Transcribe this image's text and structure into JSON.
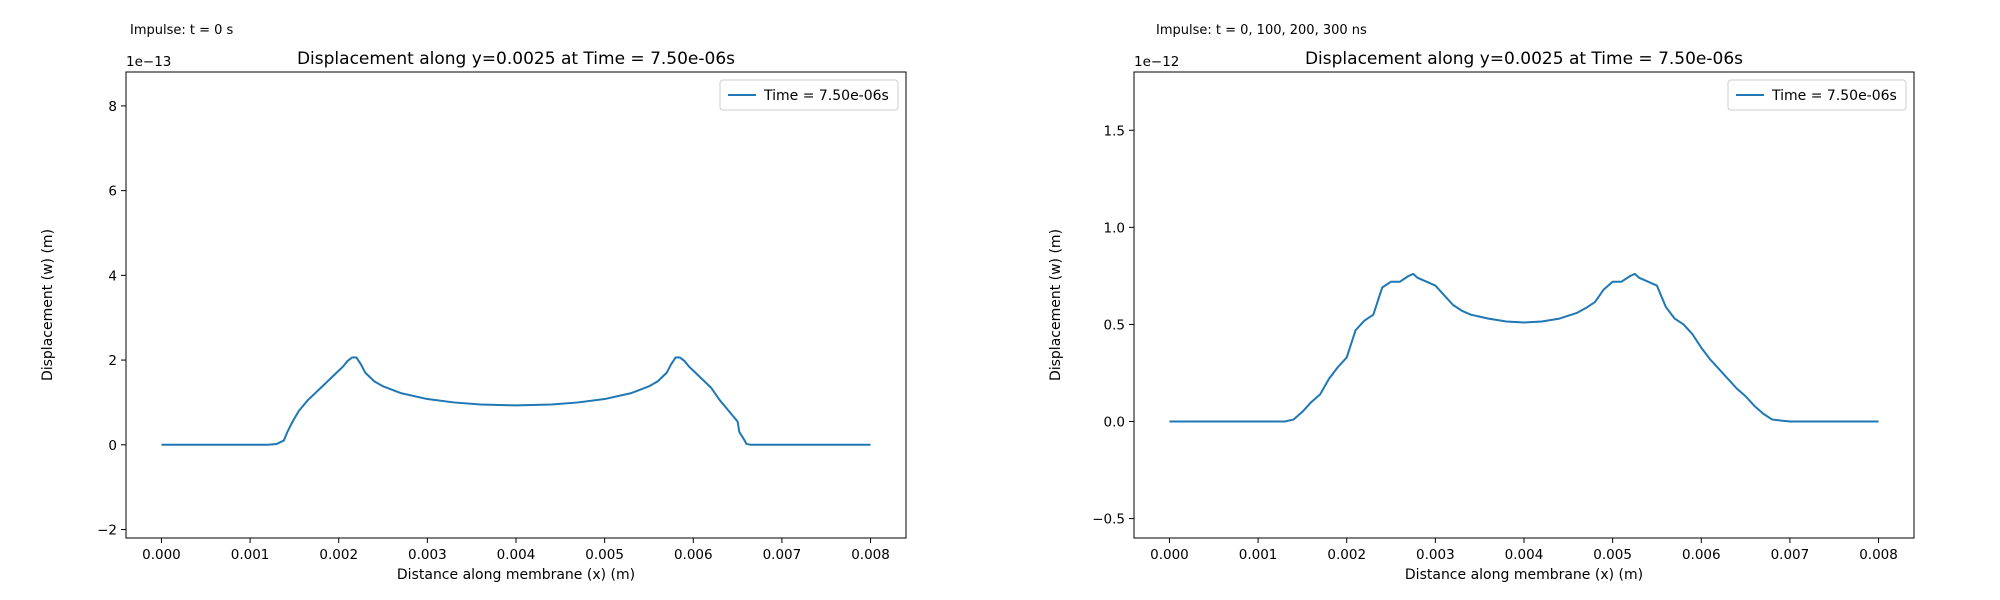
{
  "chart_data": [
    {
      "type": "line",
      "suptitle": "Impulse: t = 0 s",
      "title": "Displacement along y=0.0025 at Time = 7.50e-06s",
      "xlabel": "Distance along membrane (x) (m)",
      "ylabel": "Displacement (w) (m)",
      "y_offset_label": "1e−13",
      "xlim": [
        -0.0004,
        0.0084
      ],
      "ylim": [
        -2.2,
        8.8
      ],
      "xticks": [
        0.0,
        0.001,
        0.002,
        0.003,
        0.004,
        0.005,
        0.006,
        0.007,
        0.008
      ],
      "xtick_labels": [
        "0.000",
        "0.001",
        "0.002",
        "0.003",
        "0.004",
        "0.005",
        "0.006",
        "0.007",
        "0.008"
      ],
      "yticks": [
        -2,
        0,
        2,
        4,
        6,
        8
      ],
      "ytick_labels": [
        "−2",
        "0",
        "2",
        "4",
        "6",
        "8"
      ],
      "legend_position": "upper right",
      "color": "#1f77b4",
      "series": [
        {
          "name": "Time = 7.50e-06s",
          "x": [
            0.0,
            0.0005,
            0.001,
            0.0012,
            0.0013,
            0.00138,
            0.00142,
            0.00148,
            0.00155,
            0.00165,
            0.0018,
            0.0019,
            0.002,
            0.00205,
            0.0021,
            0.00215,
            0.00218,
            0.0022,
            0.00225,
            0.0023,
            0.0024,
            0.0025,
            0.0027,
            0.003,
            0.0033,
            0.0036,
            0.004,
            0.0044,
            0.0047,
            0.005,
            0.0053,
            0.0055,
            0.0056,
            0.0057,
            0.00575,
            0.0058,
            0.00582,
            0.00585,
            0.0059,
            0.00595,
            0.006,
            0.0061,
            0.0062,
            0.0063,
            0.0064,
            0.0065,
            0.00652,
            0.00658,
            0.0066,
            0.00665,
            0.0067,
            0.0068,
            0.007,
            0.0075,
            0.008
          ],
          "y": [
            0,
            0,
            0,
            0,
            0.02,
            0.1,
            0.3,
            0.55,
            0.8,
            1.05,
            1.35,
            1.55,
            1.75,
            1.85,
            1.98,
            2.06,
            2.06,
            2.06,
            1.9,
            1.7,
            1.5,
            1.38,
            1.22,
            1.08,
            1.0,
            0.95,
            0.93,
            0.95,
            1.0,
            1.08,
            1.22,
            1.38,
            1.5,
            1.7,
            1.9,
            2.06,
            2.06,
            2.06,
            1.98,
            1.85,
            1.75,
            1.55,
            1.35,
            1.05,
            0.8,
            0.55,
            0.3,
            0.1,
            0.02,
            0,
            0,
            0,
            0,
            0,
            0
          ]
        }
      ]
    },
    {
      "type": "line",
      "suptitle": "Impulse: t = 0, 100, 200, 300 ns",
      "title": "Displacement along y=0.0025 at Time = 7.50e-06s",
      "xlabel": "Distance along membrane (x) (m)",
      "ylabel": "Displacement (w) (m)",
      "y_offset_label": "1e−12",
      "xlim": [
        -0.0004,
        0.0084
      ],
      "ylim": [
        -0.6,
        1.8
      ],
      "xticks": [
        0.0,
        0.001,
        0.002,
        0.003,
        0.004,
        0.005,
        0.006,
        0.007,
        0.008
      ],
      "xtick_labels": [
        "0.000",
        "0.001",
        "0.002",
        "0.003",
        "0.004",
        "0.005",
        "0.006",
        "0.007",
        "0.008"
      ],
      "yticks": [
        -0.5,
        0.0,
        0.5,
        1.0,
        1.5
      ],
      "ytick_labels": [
        "−0.5",
        "0.0",
        "0.5",
        "1.0",
        "1.5"
      ],
      "legend_position": "upper right",
      "color": "#1f77b4",
      "series": [
        {
          "name": "Time = 7.50e-06s",
          "x": [
            0.0,
            0.0005,
            0.001,
            0.0011,
            0.0012,
            0.0013,
            0.0014,
            0.0015,
            0.0016,
            0.0017,
            0.0018,
            0.0019,
            0.002,
            0.0021,
            0.0022,
            0.0023,
            0.0024,
            0.0025,
            0.0026,
            0.0027,
            0.00275,
            0.0028,
            0.0029,
            0.003,
            0.0031,
            0.0032,
            0.0033,
            0.0034,
            0.0036,
            0.0038,
            0.004,
            0.0042,
            0.0044,
            0.0046,
            0.0047,
            0.0048,
            0.0049,
            0.005,
            0.0051,
            0.0052,
            0.00525,
            0.0053,
            0.0054,
            0.0055,
            0.0056,
            0.0057,
            0.0058,
            0.0059,
            0.006,
            0.0061,
            0.0062,
            0.0063,
            0.0064,
            0.0065,
            0.0066,
            0.0067,
            0.0068,
            0.007,
            0.0075,
            0.008
          ],
          "y": [
            0,
            0,
            0,
            0,
            0,
            0,
            0.01,
            0.05,
            0.1,
            0.14,
            0.22,
            0.28,
            0.33,
            0.47,
            0.52,
            0.55,
            0.69,
            0.72,
            0.72,
            0.75,
            0.76,
            0.74,
            0.72,
            0.7,
            0.65,
            0.6,
            0.57,
            0.55,
            0.53,
            0.515,
            0.51,
            0.515,
            0.53,
            0.56,
            0.585,
            0.615,
            0.68,
            0.72,
            0.72,
            0.75,
            0.76,
            0.74,
            0.72,
            0.7,
            0.59,
            0.53,
            0.5,
            0.45,
            0.38,
            0.32,
            0.27,
            0.22,
            0.17,
            0.13,
            0.08,
            0.04,
            0.01,
            0,
            0,
            0
          ]
        }
      ]
    }
  ]
}
